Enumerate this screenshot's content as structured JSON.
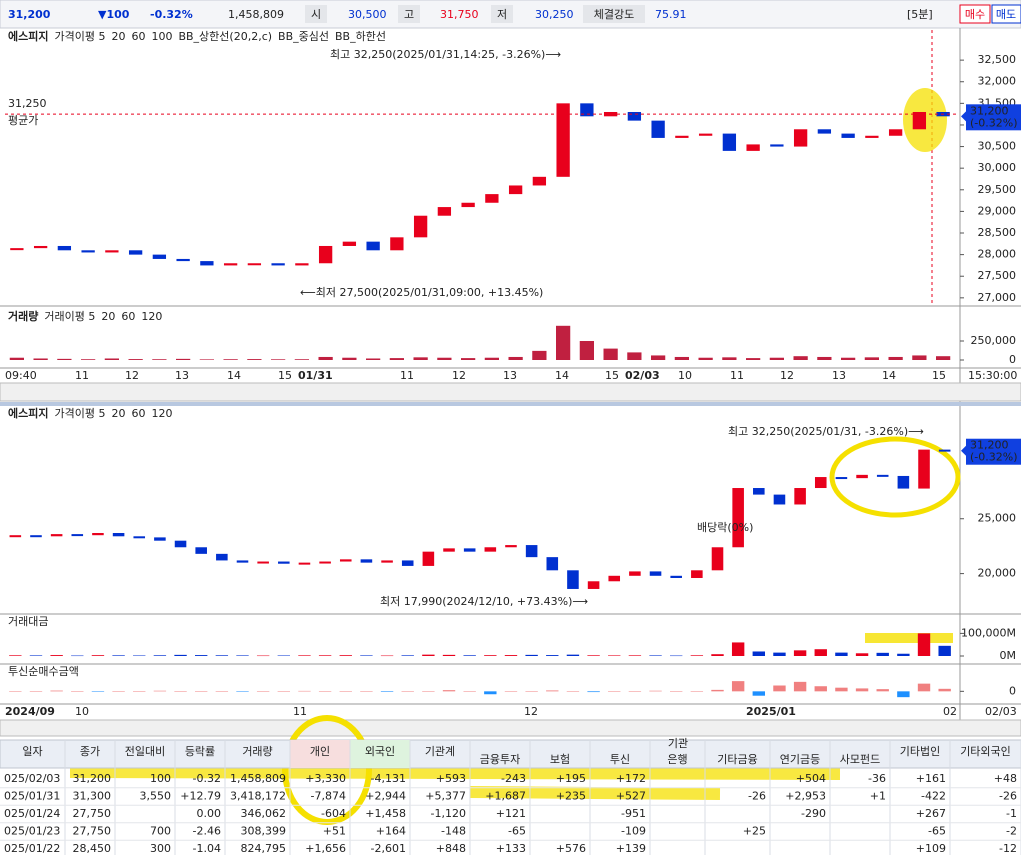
{
  "quote": {
    "price": "31,200",
    "change": "▼100",
    "rate": "-0.32%",
    "volume": "1,458,809",
    "open_label": "시",
    "open": "30,500",
    "high_label": "고",
    "high": "31,750",
    "low_label": "저",
    "low": "30,250",
    "strength_label": "체결강도",
    "strength": "75.91",
    "period": "[5분]",
    "buy": "매수",
    "sell": "매도"
  },
  "chart_data": [
    {
      "type": "candle",
      "legend": [
        {
          "name": "에스피지",
          "color": "#000000"
        },
        {
          "name": "가격이평 5",
          "color": "#e8001c"
        },
        {
          "name": "20",
          "color": "#f08000"
        },
        {
          "name": "60",
          "color": "#00a000"
        },
        {
          "name": "100",
          "color": "#000000"
        },
        {
          "name": "BB_상한선(20,2,c)",
          "color": "#b0b0b0"
        },
        {
          "name": "BB_중심선",
          "color": "#f08000"
        },
        {
          "name": "BB_하한선",
          "color": "#b0b0b0"
        }
      ],
      "values": [
        28150,
        28200,
        28100,
        28050,
        28100,
        28000,
        27900,
        27850,
        27750,
        27800,
        27800,
        27750,
        27800,
        28200,
        28300,
        28100,
        28400,
        28900,
        29100,
        29200,
        29400,
        29600,
        29800,
        31500,
        31200,
        31300,
        31100,
        30700,
        30750,
        30800,
        30400,
        30550,
        30500,
        30900,
        30800,
        30700,
        30750,
        30900,
        31300,
        31200
      ],
      "ylim": [
        26950,
        32850
      ],
      "yticks": [
        {
          "value": 32500,
          "label": "32,500"
        },
        {
          "value": 32000,
          "label": "32,000"
        },
        {
          "value": 31500,
          "label": "31,500"
        },
        {
          "value": 31000,
          "label": "31,000"
        },
        {
          "value": 30500,
          "label": "30,500"
        },
        {
          "value": 30000,
          "label": "30,000"
        },
        {
          "value": 29500,
          "label": "29,500"
        },
        {
          "value": 29000,
          "label": "29,000"
        },
        {
          "value": 28500,
          "label": "28,500"
        },
        {
          "value": 28000,
          "label": "28,000"
        },
        {
          "value": 27500,
          "label": "27,500"
        },
        {
          "value": 27000,
          "label": "27,000"
        }
      ],
      "annotations": {
        "high": "최고 32,250(2025/01/31,14:25, -3.26%)⟶",
        "low": "⟵최저 27,500(2025/01/31,09:00, +13.45%)"
      },
      "avg_price": {
        "value": 31250,
        "label": "31,250",
        "name": "평균가"
      },
      "price_tag": [
        "31,200",
        "(-0.32%)"
      ],
      "up_color": "#e8001c",
      "down_color": "#0030d0"
    },
    {
      "type": "bar",
      "legend": [
        {
          "name": "거래량",
          "color": "#000000"
        },
        {
          "name": "거래이평 5",
          "color": "#00a000"
        },
        {
          "name": "20",
          "color": "#0060d0"
        },
        {
          "name": "60",
          "color": "#000080"
        },
        {
          "name": "120",
          "color": "#800040"
        }
      ],
      "values": [
        30000,
        20000,
        15000,
        10000,
        20000,
        12000,
        10000,
        15000,
        8000,
        10000,
        12000,
        9000,
        10000,
        40000,
        30000,
        20000,
        25000,
        35000,
        30000,
        25000,
        30000,
        40000,
        120000,
        450000,
        250000,
        150000,
        100000,
        60000,
        40000,
        30000,
        35000,
        25000,
        30000,
        50000,
        40000,
        30000,
        35000,
        40000,
        60000,
        50000
      ],
      "ylim": [
        0,
        500000
      ],
      "yticks": [
        {
          "value": 250000,
          "label": "250,000"
        },
        0
      ],
      "xaxis_labels": [
        "09:40",
        "11",
        "12",
        "13",
        "14",
        "15",
        "01/31",
        "11",
        "12",
        "13",
        "14",
        "15",
        "02/03",
        "10",
        "11",
        "12",
        "13",
        "14",
        "15",
        "15:30:00"
      ],
      "color": "#c02040"
    },
    {
      "type": "candle",
      "legend": [
        {
          "name": "에스피지",
          "color": "#000000"
        },
        {
          "name": "가격이평 5",
          "color": "#00a000"
        },
        {
          "name": "20",
          "color": "#0060d0"
        },
        {
          "name": "60",
          "color": "#000080"
        },
        {
          "name": "120",
          "color": "#800040"
        }
      ],
      "values": [
        23500,
        23400,
        23600,
        23500,
        23700,
        23400,
        23300,
        23000,
        22400,
        21800,
        21200,
        21000,
        21100,
        20900,
        21000,
        21100,
        21300,
        21000,
        21200,
        20700,
        22000,
        22300,
        22000,
        22400,
        22600,
        21500,
        20300,
        18600,
        19300,
        19800,
        20200,
        19800,
        19600,
        20300,
        22400,
        27800,
        27200,
        26300,
        27800,
        28800,
        28700,
        29000,
        28900,
        27750,
        31300,
        31200
      ],
      "ylim": [
        16500,
        34000
      ],
      "yticks": [
        {
          "value": 25000,
          "label": "25,000"
        },
        {
          "value": 20000,
          "label": "20,000"
        }
      ],
      "annotations": {
        "high": "최고 32,250(2025/01/31, -3.26%)⟶",
        "low": "최저 17,990(2024/12/10, +73.43%)⟶",
        "event": "배당락(0%)"
      },
      "price_tag": [
        "31,200",
        "(-0.32%)"
      ],
      "up_color": "#e8001c",
      "down_color": "#0030d0"
    },
    {
      "type": "bar",
      "legend": [
        {
          "name": "거래대금",
          "color": "#008000"
        }
      ],
      "values": [
        3000,
        2500,
        4000,
        2000,
        3500,
        2800,
        2200,
        3000,
        5000,
        4000,
        3000,
        2500,
        2000,
        2200,
        2800,
        3000,
        3500,
        2500,
        2000,
        2800,
        6000,
        5000,
        3000,
        3500,
        4000,
        5000,
        4000,
        6000,
        3000,
        2500,
        2800,
        2500,
        2000,
        3000,
        8000,
        60000,
        20000,
        15000,
        25000,
        30000,
        15000,
        12000,
        14000,
        10000,
        100000,
        45000
      ],
      "ylim": [
        0,
        115000
      ],
      "yticks": [
        {
          "value": 100000,
          "label": "100,000M"
        },
        {
          "value": 0,
          "label": "0M"
        }
      ],
      "up_color": "#e8001c",
      "down_color": "#0030d0"
    },
    {
      "type": "bar",
      "legend": [
        {
          "name": "투신순매수금액",
          "color": "#f06080"
        }
      ],
      "values": [
        0,
        0,
        50,
        0,
        -30,
        0,
        0,
        40,
        0,
        0,
        0,
        -20,
        0,
        0,
        30,
        0,
        0,
        0,
        -40,
        0,
        0,
        80,
        0,
        -200,
        0,
        0,
        60,
        0,
        -50,
        0,
        0,
        40,
        0,
        0,
        100,
        700,
        -300,
        400,
        650,
        350,
        250,
        200,
        150,
        -400,
        527,
        172
      ],
      "ylim": [
        -800,
        1600
      ],
      "yticks": [
        0
      ],
      "xaxis_labels": [
        "2024/09",
        "10",
        "11",
        "12",
        "2025/01",
        "02",
        "02/03"
      ],
      "up_color": "#f08080",
      "down_color": "#1e90ff"
    }
  ],
  "table": {
    "group_header": "기관",
    "headers": [
      "일자",
      "종가",
      "전일대비",
      "등락률",
      "거래량",
      "개인",
      "외국인",
      "기관계",
      "금융투자",
      "보험",
      "투신",
      "은행",
      "기타금융",
      "연기금등",
      "사모펀드",
      "기타법인",
      "기타외국인"
    ],
    "rows": [
      [
        "025/02/03",
        "31,200",
        "100",
        "-0.32",
        "1,458,809",
        "+3,330",
        "-4,131",
        "+593",
        "-243",
        "+195",
        "+172",
        null,
        null,
        "+504",
        "-36",
        "+161",
        "+48"
      ],
      [
        "025/01/31",
        "31,300",
        "3,550",
        "+12.79",
        "3,418,172",
        "-7,874",
        "+2,944",
        "+5,377",
        "+1,687",
        "+235",
        "+527",
        null,
        "-26",
        "+2,953",
        "+1",
        "-422",
        "-26"
      ],
      [
        "025/01/24",
        "27,750",
        null,
        "0.00",
        "346,062",
        "-604",
        "+1,458",
        "-1,120",
        "+121",
        null,
        "-951",
        null,
        null,
        "-290",
        null,
        "+267",
        "-1"
      ],
      [
        "025/01/23",
        "27,750",
        "700",
        "-2.46",
        "308,399",
        "+51",
        "+164",
        "-148",
        "-65",
        null,
        "-109",
        null,
        "+25",
        null,
        null,
        "-65",
        "-2"
      ],
      [
        "025/01/22",
        "28,450",
        "300",
        "-1.04",
        "824,795",
        "+1,656",
        "-2,601",
        "+848",
        "+133",
        "+576",
        "+139",
        null,
        null,
        null,
        null,
        "+109",
        "-12"
      ]
    ]
  }
}
